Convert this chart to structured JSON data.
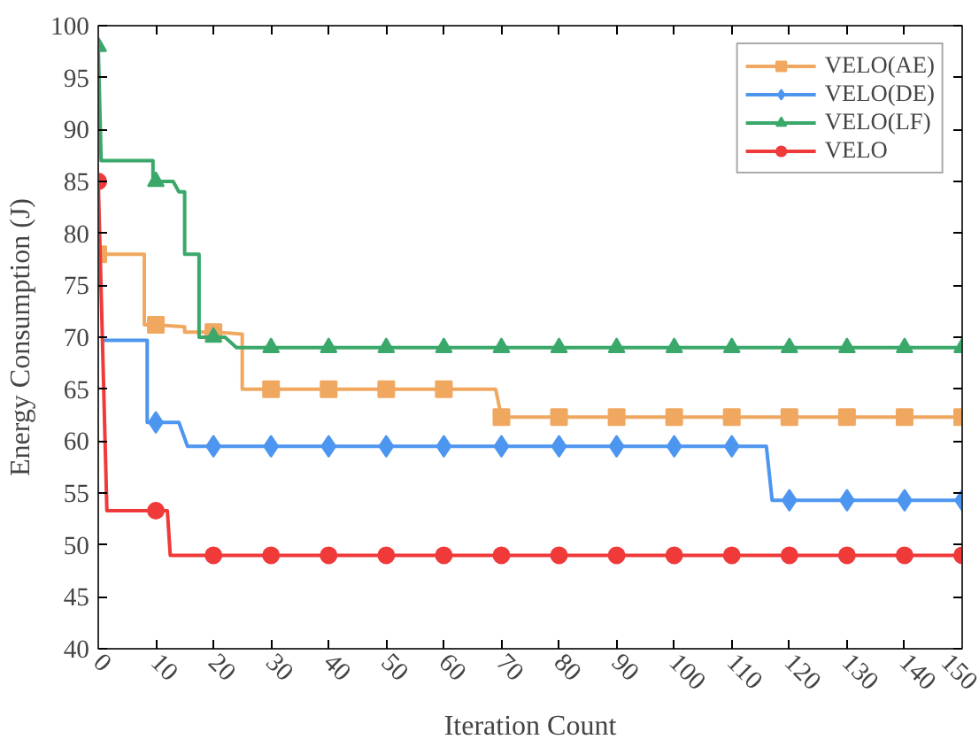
{
  "chart_data": {
    "type": "line",
    "xlabel": "Iteration Count",
    "ylabel": "Energy Consumption (J)",
    "xlim": [
      0,
      150
    ],
    "ylim": [
      40,
      100
    ],
    "xticks": [
      0,
      10,
      20,
      30,
      40,
      50,
      60,
      70,
      80,
      90,
      100,
      110,
      120,
      130,
      140,
      150
    ],
    "yticks": [
      40,
      45,
      50,
      55,
      60,
      65,
      70,
      75,
      80,
      85,
      90,
      95,
      100
    ],
    "grid": false,
    "legend": "top right",
    "series": [
      {
        "name": "VELO(AE)",
        "color": "#f0a860",
        "marker": "square",
        "x": [
          0,
          8,
          8,
          10,
          15,
          15,
          20,
          25,
          25,
          30,
          40,
          50,
          60,
          69,
          70,
          80,
          90,
          100,
          110,
          120,
          130,
          140,
          150
        ],
        "values": [
          78,
          78,
          71.2,
          71.2,
          71,
          70.5,
          70.5,
          70.3,
          65,
          65,
          65,
          65,
          65,
          65,
          62.3,
          62.3,
          62.3,
          62.3,
          62.3,
          62.3,
          62.3,
          62.3,
          62.3
        ]
      },
      {
        "name": "VELO(DE)",
        "color": "#4d96f0",
        "marker": "diamond",
        "x": [
          0.5,
          8.5,
          8.5,
          10,
          14,
          15.5,
          20,
          30,
          40,
          50,
          60,
          70,
          80,
          90,
          100,
          110,
          116,
          117,
          120,
          130,
          140,
          150
        ],
        "values": [
          69.7,
          69.7,
          61.8,
          61.8,
          61.8,
          59.5,
          59.5,
          59.5,
          59.5,
          59.5,
          59.5,
          59.5,
          59.5,
          59.5,
          59.5,
          59.5,
          59.5,
          54.3,
          54.3,
          54.3,
          54.3,
          54.3
        ]
      },
      {
        "name": "VELO(LF)",
        "color": "#3aa86a",
        "marker": "triangle",
        "x": [
          0,
          0.5,
          9.5,
          9.5,
          10,
          13,
          14,
          15,
          15,
          17.5,
          17.5,
          20,
          22,
          24,
          30,
          40,
          50,
          60,
          70,
          80,
          90,
          100,
          110,
          120,
          130,
          140,
          150
        ],
        "values": [
          98,
          87,
          87,
          85,
          85,
          85,
          84,
          84,
          78,
          78,
          70,
          70,
          70,
          69,
          69,
          69,
          69,
          69,
          69,
          69,
          69,
          69,
          69,
          69,
          69,
          69,
          69
        ]
      },
      {
        "name": "VELO",
        "color": "#f03a3a",
        "marker": "circle",
        "x": [
          0,
          1.5,
          10,
          12,
          12.5,
          20,
          30,
          40,
          50,
          60,
          70,
          80,
          90,
          100,
          110,
          120,
          130,
          140,
          150
        ],
        "values": [
          85,
          53.3,
          53.3,
          53.3,
          49,
          49,
          49,
          49,
          49,
          49,
          49,
          49,
          49,
          49,
          49,
          49,
          49,
          49,
          49
        ]
      }
    ]
  }
}
